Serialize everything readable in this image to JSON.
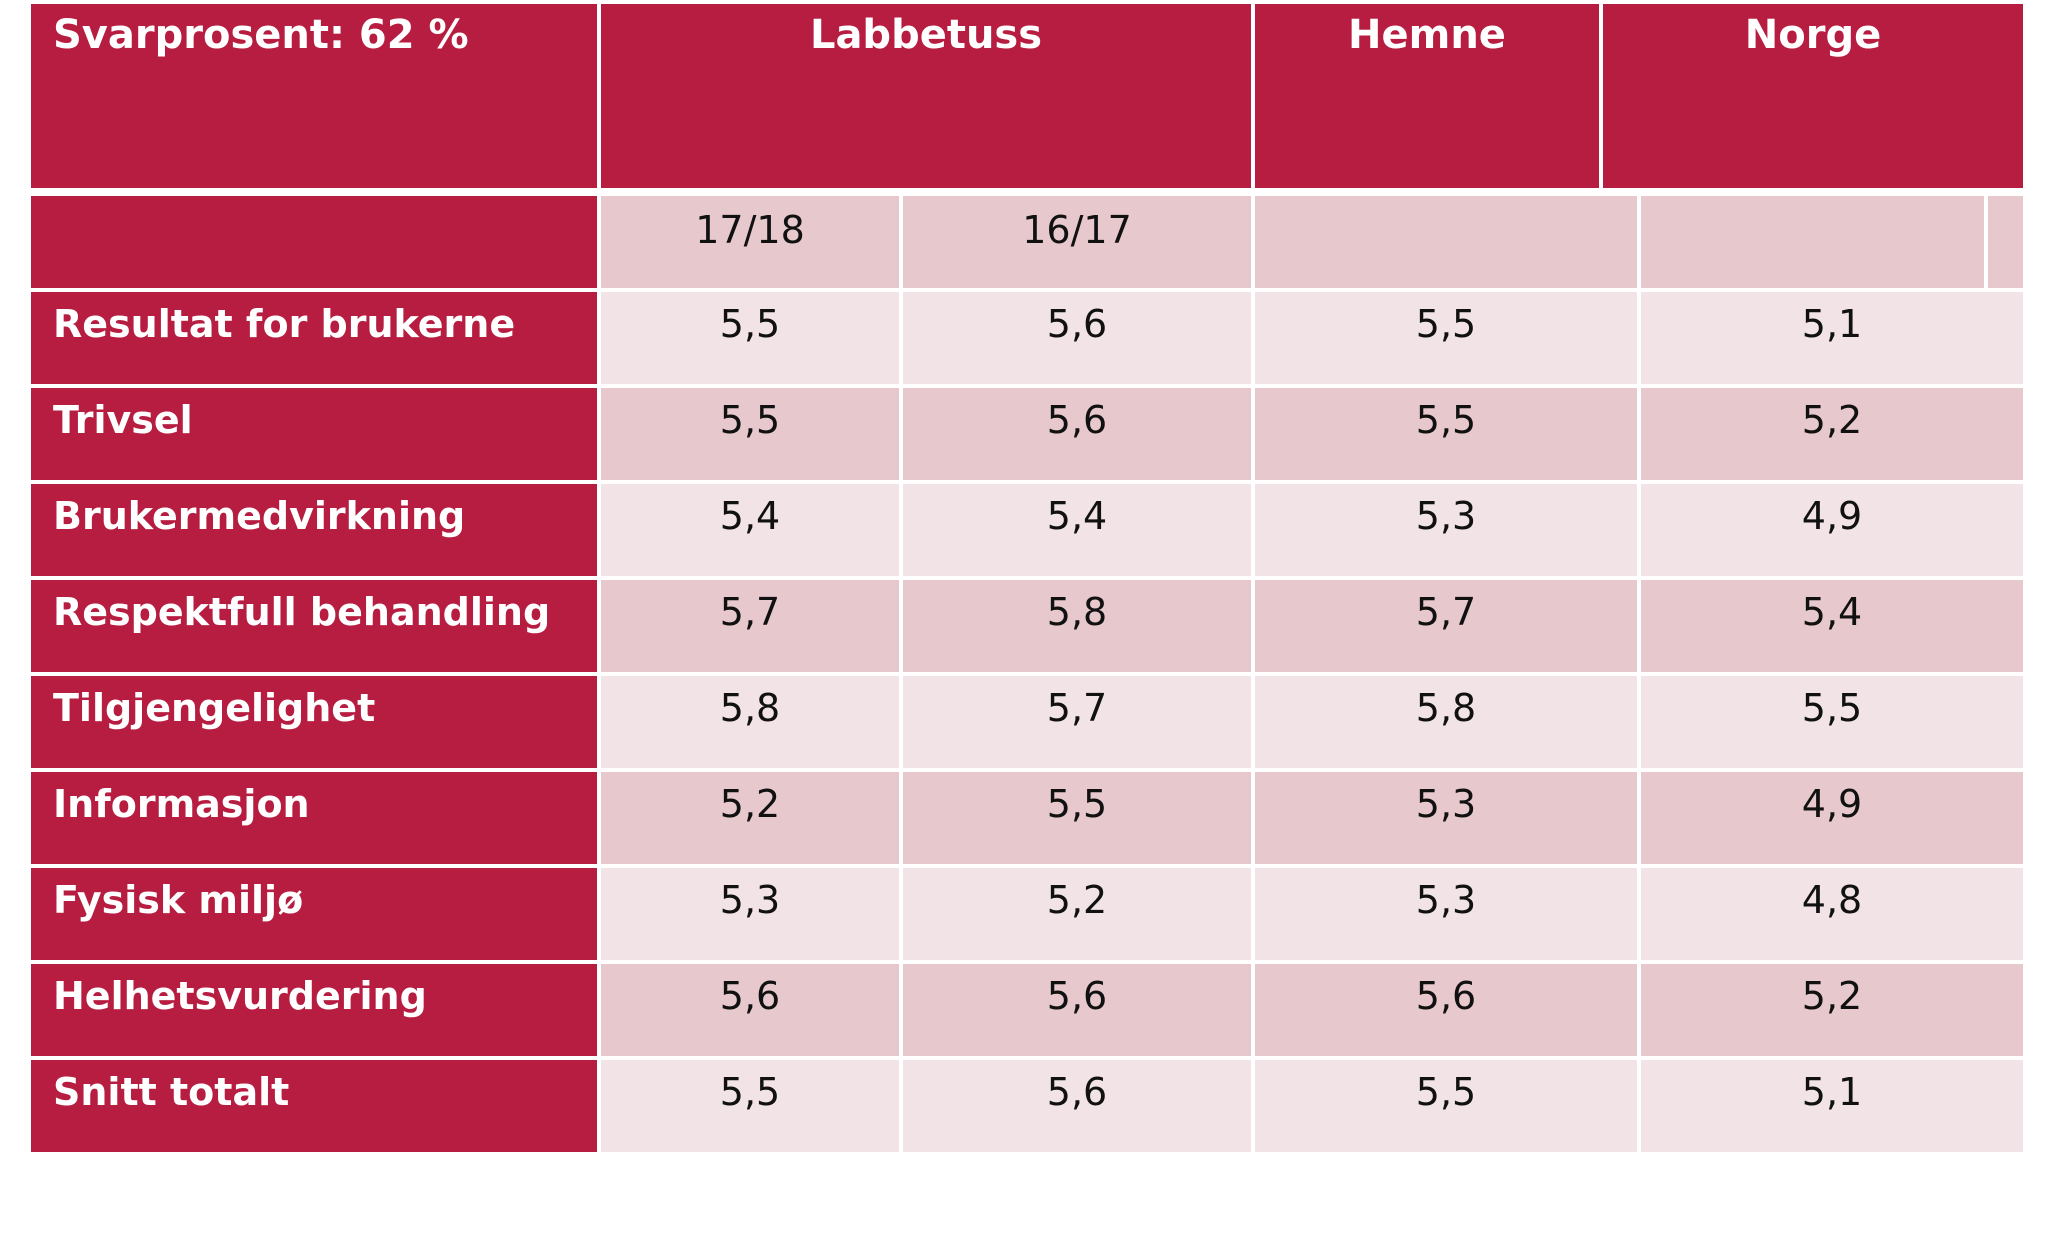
{
  "table": {
    "header": {
      "title": "Svarprosent: 62 %",
      "columns": [
        "Labbetuss",
        "Hemne",
        "Norge"
      ]
    },
    "subheader": {
      "periods": [
        "17/18",
        "16/17"
      ]
    },
    "rows": [
      {
        "label": "Resultat for brukerne",
        "values": [
          "5,5",
          "5,6",
          "5,5",
          "5,1"
        ]
      },
      {
        "label": "Trivsel",
        "values": [
          "5,5",
          "5,6",
          "5,5",
          "5,2"
        ]
      },
      {
        "label": "Brukermedvirkning",
        "values": [
          "5,4",
          "5,4",
          "5,3",
          "4,9"
        ]
      },
      {
        "label": "Respektfull behandling",
        "values": [
          "5,7",
          "5,8",
          "5,7",
          "5,4"
        ]
      },
      {
        "label": "Tilgjengelighet",
        "values": [
          "5,8",
          "5,7",
          "5,8",
          "5,5"
        ]
      },
      {
        "label": "Informasjon",
        "values": [
          "5,2",
          "5,5",
          "5,3",
          "4,9"
        ]
      },
      {
        "label": "Fysisk miljø",
        "values": [
          "5,3",
          "5,2",
          "5,3",
          "4,8"
        ]
      },
      {
        "label": "Helhetsvurdering",
        "values": [
          "5,6",
          "5,6",
          "5,6",
          "5,2"
        ]
      },
      {
        "label": "Snitt totalt",
        "values": [
          "5,5",
          "5,6",
          "5,5",
          "5,1"
        ]
      }
    ]
  },
  "colors": {
    "header_red": "#b71d40",
    "row_dark": "#e6c8cd",
    "row_light": "#f2e4e6"
  }
}
